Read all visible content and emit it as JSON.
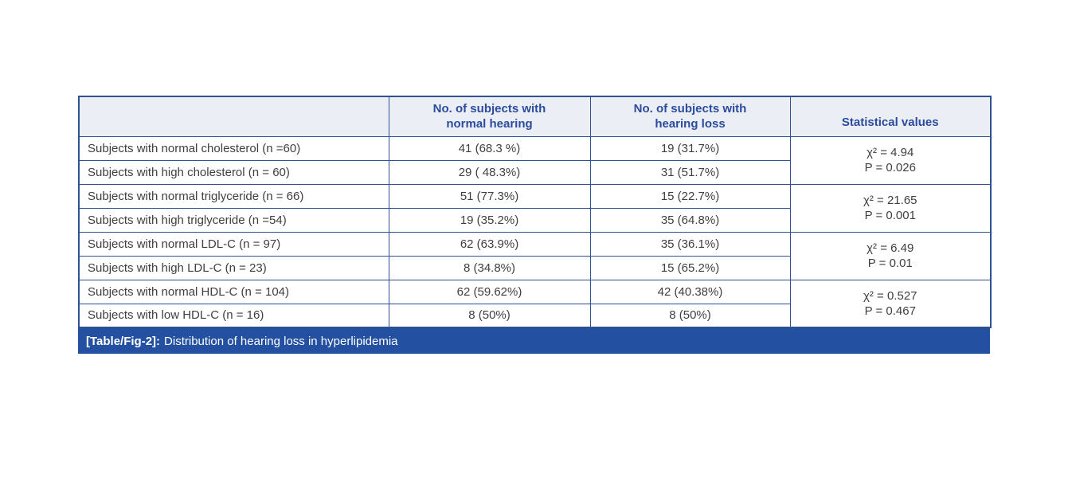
{
  "colors": {
    "header_bg": "#eceef6",
    "header_text": "#2b4c9c",
    "border": "#30518f",
    "caption_bg": "#2350a0",
    "caption_text": "#ffffff",
    "body_text": "#3f3f3f",
    "page_bg": "#ffffff"
  },
  "chart_data": {
    "type": "table",
    "columns": [
      "",
      "No. of subjects with\nnormal hearing",
      "No. of subjects with\nhearing loss",
      "Statistical values"
    ],
    "groups": [
      {
        "rows": [
          {
            "label": "Subjects with normal cholesterol (n =60)",
            "normal_hearing": "41 (68.3 %)",
            "hearing_loss": "19 (31.7%)"
          },
          {
            "label": "Subjects with high cholesterol (n = 60)",
            "normal_hearing": "29 ( 48.3%)",
            "hearing_loss": "31 (51.7%)"
          }
        ],
        "statistics": [
          "χ² = 4.94",
          "P = 0.026"
        ]
      },
      {
        "rows": [
          {
            "label": "Subjects with normal triglyceride (n = 66)",
            "normal_hearing": "51 (77.3%)",
            "hearing_loss": "15 (22.7%)"
          },
          {
            "label": "Subjects with high triglyceride (n =54)",
            "normal_hearing": "19 (35.2%)",
            "hearing_loss": "35 (64.8%)"
          }
        ],
        "statistics": [
          "χ² = 21.65",
          "P = 0.001"
        ]
      },
      {
        "rows": [
          {
            "label": "Subjects with normal LDL-C (n = 97)",
            "normal_hearing": "62 (63.9%)",
            "hearing_loss": "35 (36.1%)"
          },
          {
            "label": "Subjects with high LDL-C (n = 23)",
            "normal_hearing": "8 (34.8%)",
            "hearing_loss": "15 (65.2%)"
          }
        ],
        "statistics": [
          "χ² = 6.49",
          "P = 0.01"
        ]
      },
      {
        "rows": [
          {
            "label": "Subjects with normal HDL-C (n = 104)",
            "normal_hearing": "62 (59.62%)",
            "hearing_loss": "42 (40.38%)"
          },
          {
            "label": "Subjects with low HDL-C (n = 16)",
            "normal_hearing": "8 (50%)",
            "hearing_loss": "8 (50%)"
          }
        ],
        "statistics": [
          "χ² = 0.527",
          "P = 0.467"
        ]
      }
    ],
    "caption": {
      "tag": "[Table/Fig-2]:",
      "text": "Distribution of hearing loss in hyperlipidemia"
    }
  }
}
